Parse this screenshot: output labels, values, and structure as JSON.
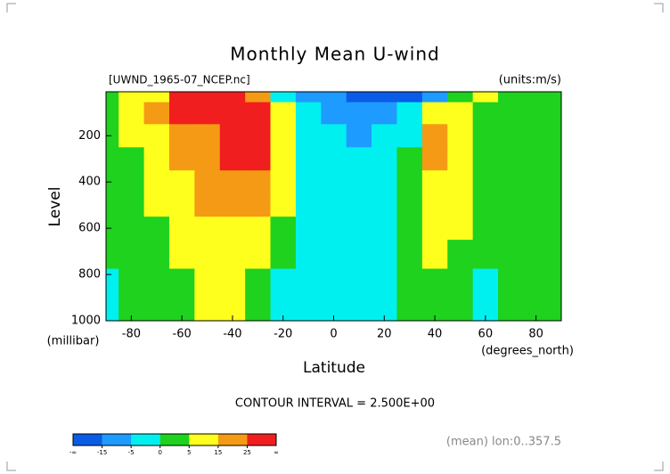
{
  "chart_data": {
    "type": "contour",
    "title": "Monthly Mean U-wind",
    "subtitle": "[UWND_1965-07_NCEP.nc]",
    "units_label": "(units:m/s)",
    "x_label": "Latitude",
    "x_units": "(degrees_north)",
    "y_label": "Level",
    "y_units": "(millibar)",
    "note": "CONTOUR INTERVAL = 2.500E+00",
    "footnote": "(mean) lon:0..357.5",
    "x": [
      -90,
      -80,
      -70,
      -60,
      -50,
      -40,
      -30,
      -20,
      -10,
      0,
      10,
      20,
      30,
      40,
      50,
      60,
      70,
      80,
      90
    ],
    "levels": [
      10,
      100,
      200,
      300,
      400,
      500,
      600,
      700,
      850,
      1000
    ],
    "z": [
      [
        3,
        8,
        15,
        26,
        28,
        27,
        22,
        -2,
        -8,
        -12,
        -18,
        -22,
        -15,
        -5,
        3,
        6,
        4,
        2,
        2
      ],
      [
        2,
        8,
        16,
        27,
        28,
        30,
        35,
        10,
        -3,
        -6,
        -10,
        -12,
        -4,
        8,
        6,
        3,
        2,
        2,
        2
      ],
      [
        2,
        6,
        12,
        22,
        24,
        28,
        36,
        12,
        -4,
        -3,
        -6,
        -4,
        0,
        18,
        12,
        4,
        2,
        4,
        2
      ],
      [
        2,
        5,
        10,
        18,
        22,
        26,
        30,
        10,
        -3,
        -2,
        -3,
        -2,
        1,
        16,
        12,
        4,
        2,
        2,
        2
      ],
      [
        2,
        4,
        8,
        14,
        20,
        22,
        22,
        8,
        -2,
        -1,
        -2,
        -1,
        2,
        13,
        10,
        3,
        2,
        2,
        2
      ],
      [
        2,
        3,
        6,
        11,
        16,
        18,
        16,
        6,
        -1,
        -1,
        -1,
        -1,
        2,
        11,
        8,
        2,
        2,
        2,
        2
      ],
      [
        1,
        3,
        5,
        9,
        13,
        14,
        11,
        3,
        -1,
        -1,
        -2,
        -1,
        3,
        8,
        6,
        2,
        2,
        2,
        2
      ],
      [
        1,
        2,
        4,
        7,
        10,
        11,
        8,
        1,
        -2,
        -1,
        -2,
        -1,
        3,
        6,
        4,
        1,
        1,
        2,
        2
      ],
      [
        0,
        1,
        3,
        5,
        8,
        9,
        5,
        0,
        -3,
        -2,
        -1,
        0,
        2,
        4,
        2,
        -1,
        1,
        1,
        1
      ],
      [
        0,
        1,
        2,
        4,
        6,
        7,
        2,
        -1,
        -3,
        -2,
        -1,
        0,
        1,
        2,
        1,
        -1,
        1,
        1,
        1
      ]
    ],
    "xlim": [
      -90,
      90
    ],
    "xticks": [
      -80,
      -60,
      -40,
      -20,
      0,
      20,
      40,
      60,
      80
    ],
    "ylim": [
      1000,
      10
    ],
    "yticks": [
      200,
      400,
      600,
      800,
      1000
    ],
    "color_levels": [
      -15,
      -5,
      0,
      5,
      15,
      25
    ],
    "color_ends": [
      "-∞",
      "∞"
    ],
    "colors": [
      "#0a5ce6",
      "#1e9bff",
      "#00f0f0",
      "#1ed21e",
      "#ffff1e",
      "#f59a14",
      "#f01e1e"
    ]
  }
}
